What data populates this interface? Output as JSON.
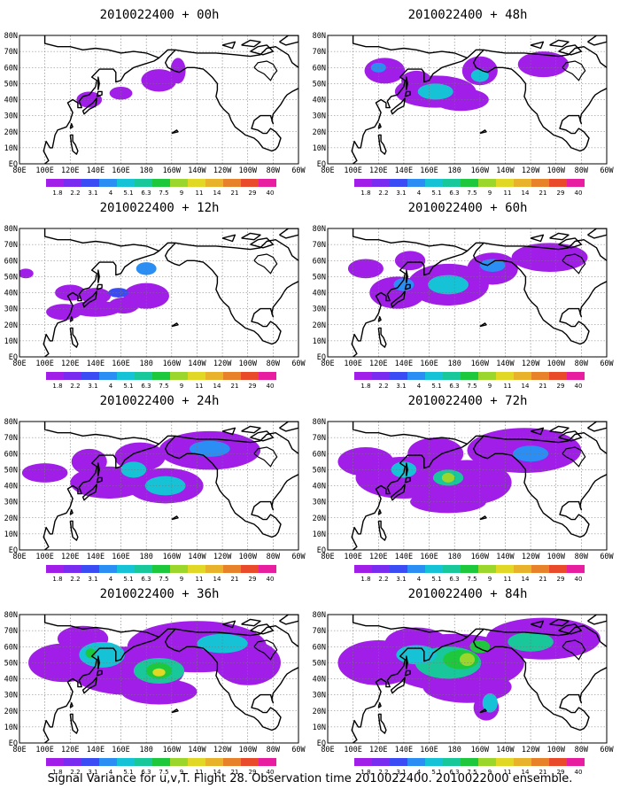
{
  "panels": [
    {
      "title": "2010022400 + 00h",
      "level": 0
    },
    {
      "title": "2010022400 + 48h",
      "level": 4
    },
    {
      "title": "2010022400 + 12h",
      "level": 1
    },
    {
      "title": "2010022400 + 60h",
      "level": 5
    },
    {
      "title": "2010022400 + 24h",
      "level": 2
    },
    {
      "title": "2010022400 + 72h",
      "level": 6
    },
    {
      "title": "2010022400 + 36h",
      "level": 3
    },
    {
      "title": "2010022400 + 84h",
      "level": 7
    }
  ],
  "lon_labels": [
    "80E",
    "100E",
    "120E",
    "140E",
    "160E",
    "180",
    "160W",
    "140W",
    "120W",
    "100W",
    "80W",
    "60W"
  ],
  "lat_labels": [
    "80N",
    "70N",
    "60N",
    "50N",
    "40N",
    "30N",
    "20N",
    "10N",
    "EQ"
  ],
  "colorbar": {
    "labels": [
      "1.8",
      "2.2",
      "3.1",
      "4",
      "5.1",
      "6.3",
      "7.5",
      "9",
      "11",
      "14",
      "21",
      "29",
      "40"
    ],
    "colors": [
      "#a01ee8",
      "#7a2bf0",
      "#3c4cf5",
      "#2a8ef5",
      "#16c3d6",
      "#18c79a",
      "#1ec83c",
      "#9bd62c",
      "#e0d824",
      "#e8b22a",
      "#e8822a",
      "#e84a2a",
      "#e81ea0"
    ]
  },
  "caption": "Signal Variance for u,v,T. Flight 28. Observation time 2010022400. 2010022000 ensemble."
}
